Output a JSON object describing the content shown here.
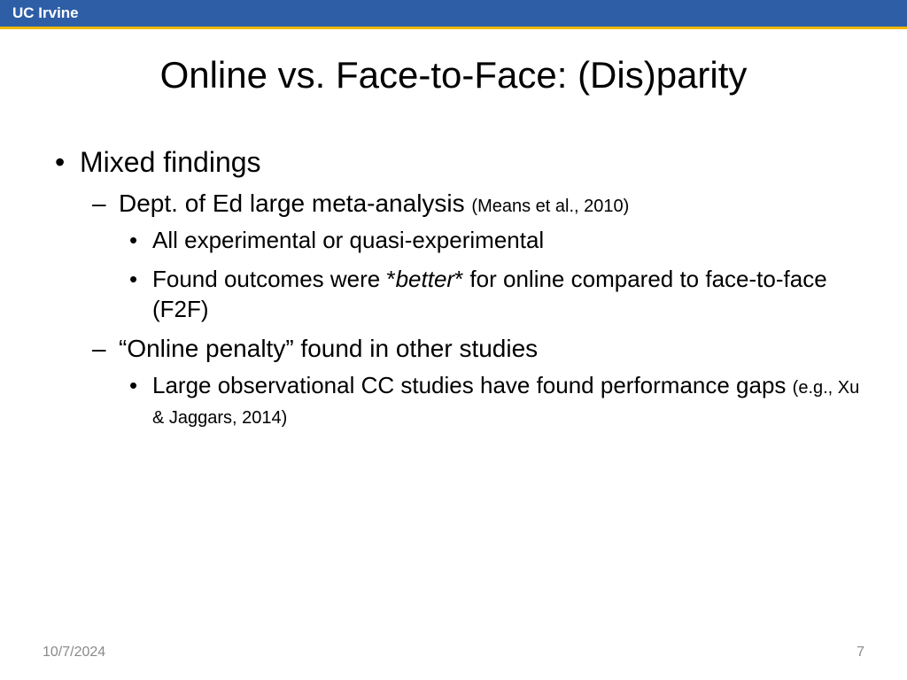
{
  "header": {
    "org": "UC Irvine"
  },
  "title": "Online vs. Face-to-Face: (Dis)parity",
  "b1": "Mixed findings",
  "b2a_main": "Dept. of Ed large meta-analysis ",
  "b2a_cite": "(Means et al., 2010)",
  "b3a": "All experimental or quasi-experimental",
  "b3b_pre": "Found outcomes were *",
  "b3b_ital": "better",
  "b3b_post": "* for online compared to face-to-face (F2F)",
  "b2b": "“Online penalty” found in other studies",
  "b3c_main": "Large observational CC studies have found performance gaps ",
  "b3c_cite": "(e.g., Xu & Jaggars, 2014)",
  "footer": {
    "date": "10/7/2024",
    "page": "7"
  }
}
